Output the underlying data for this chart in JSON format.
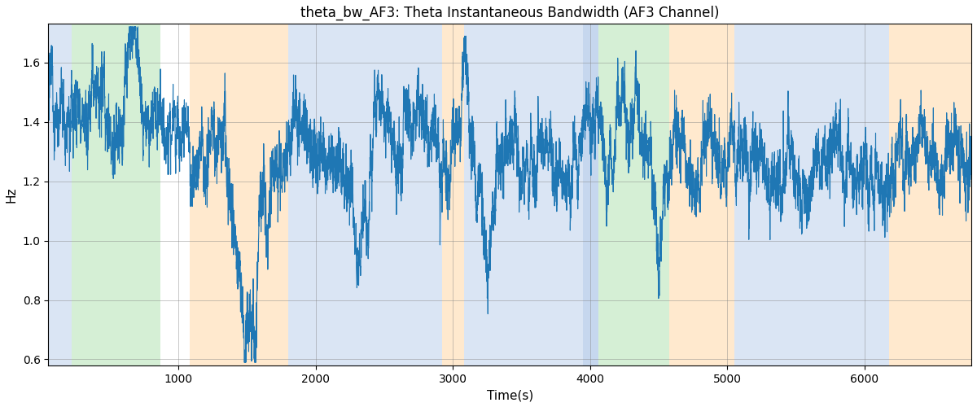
{
  "title": "theta_bw_AF3: Theta Instantaneous Bandwidth (AF3 Channel)",
  "xlabel": "Time(s)",
  "ylabel": "Hz",
  "ylim": [
    0.58,
    1.73
  ],
  "xlim": [
    50,
    6780
  ],
  "line_color": "#1f77b4",
  "line_width": 0.8,
  "background_color": "#ffffff",
  "grid": true,
  "seed": 12345,
  "bands": [
    {
      "start": 50,
      "end": 220,
      "color": "#aec6e8",
      "alpha": 0.45
    },
    {
      "start": 220,
      "end": 870,
      "color": "#98d898",
      "alpha": 0.4
    },
    {
      "start": 870,
      "end": 1080,
      "color": "#ffffff",
      "alpha": 0.0
    },
    {
      "start": 1080,
      "end": 1800,
      "color": "#ffd59e",
      "alpha": 0.5
    },
    {
      "start": 1800,
      "end": 2920,
      "color": "#aec6e8",
      "alpha": 0.45
    },
    {
      "start": 2920,
      "end": 3080,
      "color": "#ffd59e",
      "alpha": 0.5
    },
    {
      "start": 3080,
      "end": 3950,
      "color": "#aec6e8",
      "alpha": 0.45
    },
    {
      "start": 3950,
      "end": 4060,
      "color": "#aec6e8",
      "alpha": 0.7
    },
    {
      "start": 4060,
      "end": 4580,
      "color": "#98d898",
      "alpha": 0.4
    },
    {
      "start": 4580,
      "end": 5050,
      "color": "#ffd59e",
      "alpha": 0.5
    },
    {
      "start": 5050,
      "end": 6180,
      "color": "#aec6e8",
      "alpha": 0.45
    },
    {
      "start": 6180,
      "end": 6780,
      "color": "#ffd59e",
      "alpha": 0.5
    }
  ]
}
